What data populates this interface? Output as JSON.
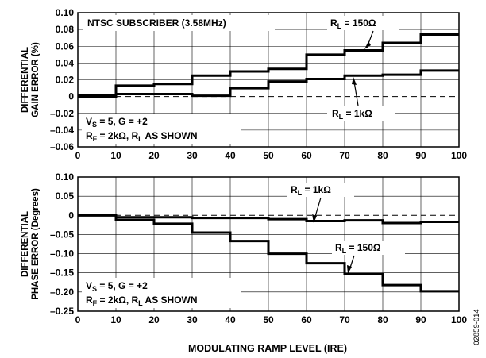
{
  "figure_id": "02859-014",
  "chart_data": [
    {
      "type": "line",
      "step": true,
      "xlim": [
        0,
        100
      ],
      "ylim": [
        -0.06,
        0.1
      ],
      "x_ticks": [
        "0",
        "10",
        "20",
        "30",
        "40",
        "50",
        "60",
        "70",
        "80",
        "90",
        "100"
      ],
      "y_ticks": [
        "0.10",
        "0.08",
        "0.06",
        "0.04",
        "0.02",
        "0",
        "–0.02",
        "–0.04",
        "–0.06"
      ],
      "y_tick_values": [
        0.1,
        0.08,
        0.06,
        0.04,
        0.02,
        0,
        -0.02,
        -0.04,
        -0.06
      ],
      "ylabel_lines": [
        "DIFFERENTIAL",
        "GAIN ERROR (%)"
      ],
      "grid": true,
      "zero_line": "dashed",
      "series": [
        {
          "label_main": "R",
          "label_sub": "L",
          "label_rest": " = 150Ω",
          "x": [
            0,
            10,
            20,
            30,
            40,
            50,
            60,
            70,
            80,
            90,
            100
          ],
          "y": [
            0.002,
            0.013,
            0.015,
            0.025,
            0.03,
            0.033,
            0.05,
            0.055,
            0.064,
            0.074,
            0.074
          ]
        },
        {
          "label_main": "R",
          "label_sub": "L",
          "label_rest": " = 1kΩ",
          "x": [
            0,
            10,
            20,
            30,
            40,
            50,
            60,
            70,
            80,
            90,
            100
          ],
          "y": [
            0.0,
            0.003,
            0.003,
            0.001,
            0.01,
            0.018,
            0.021,
            0.025,
            0.026,
            0.031,
            0.031
          ]
        }
      ],
      "annotations": {
        "title": "NTSC SUBSCRIBER (3.58MHz)",
        "cond1": {
          "a": "V",
          "a_sub": "S",
          "b": " = 5, G = +2"
        },
        "cond2": {
          "a": "R",
          "a_sub": "F",
          "b": " = 2kΩ, R",
          "b_sub": "L",
          "c": " AS SHOWN"
        }
      }
    },
    {
      "type": "line",
      "step": true,
      "xlim": [
        0,
        100
      ],
      "ylim": [
        -0.25,
        0.1
      ],
      "x_ticks": [
        "0",
        "10",
        "20",
        "30",
        "40",
        "50",
        "60",
        "70",
        "80",
        "90",
        "100"
      ],
      "y_ticks": [
        "0.10",
        "0.05",
        "0",
        "–0.05",
        "–0.10",
        "–0.15",
        "–0.20",
        "–0.25"
      ],
      "y_tick_values": [
        0.1,
        0.05,
        0,
        -0.05,
        -0.1,
        -0.15,
        -0.2,
        -0.25
      ],
      "xlabel": "MODULATING RAMP LEVEL (IRE)",
      "ylabel_lines": [
        "DIFFERENTIAL",
        "PHASE ERROR (Degrees)"
      ],
      "grid": true,
      "zero_line": "dashed",
      "series": [
        {
          "label_main": "R",
          "label_sub": "L",
          "label_rest": " = 1kΩ",
          "x": [
            0,
            10,
            20,
            30,
            40,
            50,
            60,
            70,
            80,
            90,
            100
          ],
          "y": [
            0.0,
            -0.005,
            -0.005,
            -0.007,
            -0.007,
            -0.01,
            -0.015,
            -0.013,
            -0.02,
            -0.017,
            -0.017
          ]
        },
        {
          "label_main": "R",
          "label_sub": "L",
          "label_rest": " = 150Ω",
          "x": [
            0,
            10,
            20,
            30,
            40,
            50,
            60,
            70,
            80,
            90,
            100
          ],
          "y": [
            0.0,
            -0.012,
            -0.022,
            -0.045,
            -0.067,
            -0.1,
            -0.125,
            -0.153,
            -0.182,
            -0.198,
            -0.198
          ]
        }
      ],
      "annotations": {
        "cond1": {
          "a": "V",
          "a_sub": "S",
          "b": " = 5, G = +2"
        },
        "cond2": {
          "a": "R",
          "a_sub": "F",
          "b": " = 2kΩ, R",
          "b_sub": "L",
          "c": " AS SHOWN"
        }
      }
    }
  ]
}
